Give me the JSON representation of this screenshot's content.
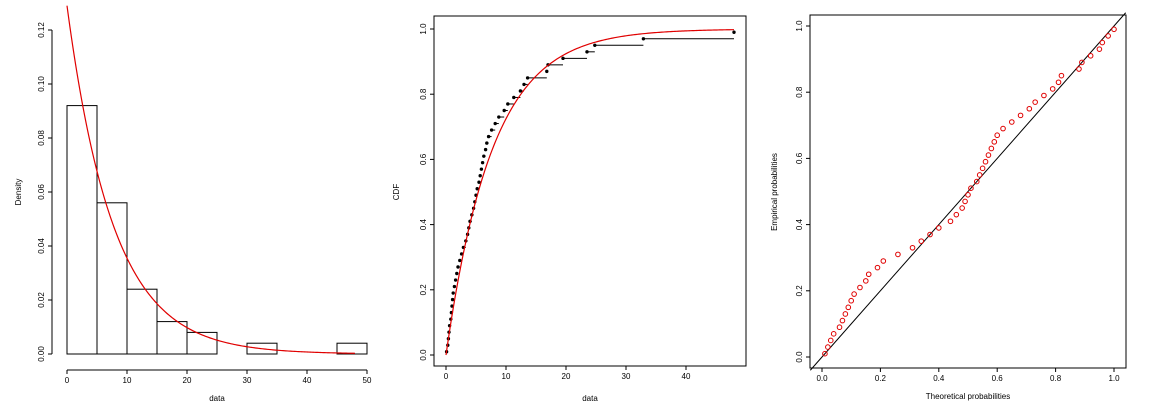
{
  "colors": {
    "fit": "#e00000",
    "empirical": "#000000",
    "pp_points": "#e00000"
  },
  "chart_data": [
    {
      "type": "bar",
      "subtype": "histogram-with-density",
      "xlabel": "data",
      "ylabel": "Density",
      "xlim": [
        0,
        50
      ],
      "ylim": [
        0,
        0.12
      ],
      "xticks": [
        0,
        10,
        20,
        30,
        40,
        50
      ],
      "yticks": [
        0.0,
        0.02,
        0.04,
        0.06,
        0.08,
        0.1,
        0.12
      ],
      "ytick_labels": [
        "0.00",
        "0.02",
        "0.04",
        "0.06",
        "0.08",
        "0.10",
        "0.12"
      ],
      "bins": [
        {
          "from": 0,
          "to": 5,
          "density": 0.092
        },
        {
          "from": 5,
          "to": 10,
          "density": 0.056
        },
        {
          "from": 10,
          "to": 15,
          "density": 0.024
        },
        {
          "from": 15,
          "to": 20,
          "density": 0.012
        },
        {
          "from": 20,
          "to": 25,
          "density": 0.008
        },
        {
          "from": 30,
          "to": 35,
          "density": 0.004
        },
        {
          "from": 45,
          "to": 50,
          "density": 0.004
        }
      ],
      "fit_curve": {
        "rate": 0.129,
        "x_range": [
          0,
          48
        ]
      }
    },
    {
      "type": "line",
      "subtype": "empirical-cdf-with-fit",
      "xlabel": "data",
      "ylabel": "CDF",
      "xlim": [
        0,
        50
      ],
      "ylim": [
        0,
        1
      ],
      "xticks": [
        0,
        10,
        20,
        30,
        40
      ],
      "yticks": [
        0.0,
        0.2,
        0.4,
        0.6,
        0.8,
        1.0
      ],
      "ytick_labels": [
        "0.0",
        "0.2",
        "0.4",
        "0.6",
        "0.8",
        "1.0"
      ],
      "points": [
        [
          0.1,
          0.01
        ],
        [
          0.3,
          0.03
        ],
        [
          0.4,
          0.05
        ],
        [
          0.5,
          0.07
        ],
        [
          0.6,
          0.09
        ],
        [
          0.8,
          0.11
        ],
        [
          0.9,
          0.13
        ],
        [
          1.0,
          0.15
        ],
        [
          1.1,
          0.17
        ],
        [
          1.2,
          0.19
        ],
        [
          1.4,
          0.21
        ],
        [
          1.6,
          0.23
        ],
        [
          1.8,
          0.25
        ],
        [
          2.0,
          0.27
        ],
        [
          2.3,
          0.29
        ],
        [
          2.6,
          0.31
        ],
        [
          2.9,
          0.33
        ],
        [
          3.3,
          0.35
        ],
        [
          3.6,
          0.37
        ],
        [
          3.8,
          0.39
        ],
        [
          4.0,
          0.41
        ],
        [
          4.3,
          0.43
        ],
        [
          4.6,
          0.45
        ],
        [
          4.8,
          0.47
        ],
        [
          5.0,
          0.49
        ],
        [
          5.2,
          0.51
        ],
        [
          5.5,
          0.53
        ],
        [
          5.7,
          0.55
        ],
        [
          5.9,
          0.57
        ],
        [
          6.1,
          0.59
        ],
        [
          6.3,
          0.61
        ],
        [
          6.6,
          0.63
        ],
        [
          6.8,
          0.65
        ],
        [
          7.1,
          0.67
        ],
        [
          7.6,
          0.69
        ],
        [
          8.2,
          0.71
        ],
        [
          8.8,
          0.73
        ],
        [
          9.7,
          0.75
        ],
        [
          10.3,
          0.77
        ],
        [
          11.3,
          0.79
        ],
        [
          12.4,
          0.81
        ],
        [
          13.0,
          0.83
        ],
        [
          13.6,
          0.85
        ],
        [
          16.8,
          0.87
        ],
        [
          17.0,
          0.89
        ],
        [
          19.5,
          0.91
        ],
        [
          23.5,
          0.93
        ],
        [
          24.8,
          0.95
        ],
        [
          32.9,
          0.97
        ],
        [
          48.0,
          0.99
        ]
      ],
      "fit_curve": {
        "rate": 0.129,
        "x_range": [
          0,
          48
        ]
      }
    },
    {
      "type": "scatter",
      "subtype": "pp-plot",
      "xlabel": "Theoretical probabilities",
      "ylabel": "Empirical probabilities",
      "xlim": [
        0,
        1
      ],
      "ylim": [
        0,
        1
      ],
      "xticks": [
        0.0,
        0.2,
        0.4,
        0.6,
        0.8,
        1.0
      ],
      "yticks": [
        0.0,
        0.2,
        0.4,
        0.6,
        0.8,
        1.0
      ],
      "xtick_labels": [
        "0.0",
        "0.2",
        "0.4",
        "0.6",
        "0.8",
        "1.0"
      ],
      "ytick_labels": [
        "0.0",
        "0.2",
        "0.4",
        "0.6",
        "0.8",
        "1.0"
      ],
      "reference_line": [
        [
          0,
          0
        ],
        [
          1,
          1
        ]
      ],
      "points": [
        [
          0.01,
          0.01
        ],
        [
          0.02,
          0.03
        ],
        [
          0.03,
          0.05
        ],
        [
          0.04,
          0.07
        ],
        [
          0.06,
          0.09
        ],
        [
          0.07,
          0.11
        ],
        [
          0.08,
          0.13
        ],
        [
          0.09,
          0.15
        ],
        [
          0.1,
          0.17
        ],
        [
          0.11,
          0.19
        ],
        [
          0.13,
          0.21
        ],
        [
          0.15,
          0.23
        ],
        [
          0.16,
          0.25
        ],
        [
          0.19,
          0.27
        ],
        [
          0.21,
          0.29
        ],
        [
          0.26,
          0.31
        ],
        [
          0.31,
          0.33
        ],
        [
          0.34,
          0.35
        ],
        [
          0.37,
          0.37
        ],
        [
          0.4,
          0.39
        ],
        [
          0.44,
          0.41
        ],
        [
          0.46,
          0.43
        ],
        [
          0.48,
          0.45
        ],
        [
          0.49,
          0.47
        ],
        [
          0.5,
          0.49
        ],
        [
          0.51,
          0.51
        ],
        [
          0.53,
          0.53
        ],
        [
          0.54,
          0.55
        ],
        [
          0.55,
          0.57
        ],
        [
          0.56,
          0.59
        ],
        [
          0.57,
          0.61
        ],
        [
          0.58,
          0.63
        ],
        [
          0.59,
          0.65
        ],
        [
          0.6,
          0.67
        ],
        [
          0.62,
          0.69
        ],
        [
          0.65,
          0.71
        ],
        [
          0.68,
          0.73
        ],
        [
          0.71,
          0.75
        ],
        [
          0.73,
          0.77
        ],
        [
          0.76,
          0.79
        ],
        [
          0.79,
          0.81
        ],
        [
          0.81,
          0.83
        ],
        [
          0.82,
          0.85
        ],
        [
          0.88,
          0.87
        ],
        [
          0.89,
          0.89
        ],
        [
          0.92,
          0.91
        ],
        [
          0.95,
          0.93
        ],
        [
          0.96,
          0.95
        ],
        [
          0.98,
          0.97
        ],
        [
          1.0,
          0.99
        ]
      ]
    }
  ]
}
